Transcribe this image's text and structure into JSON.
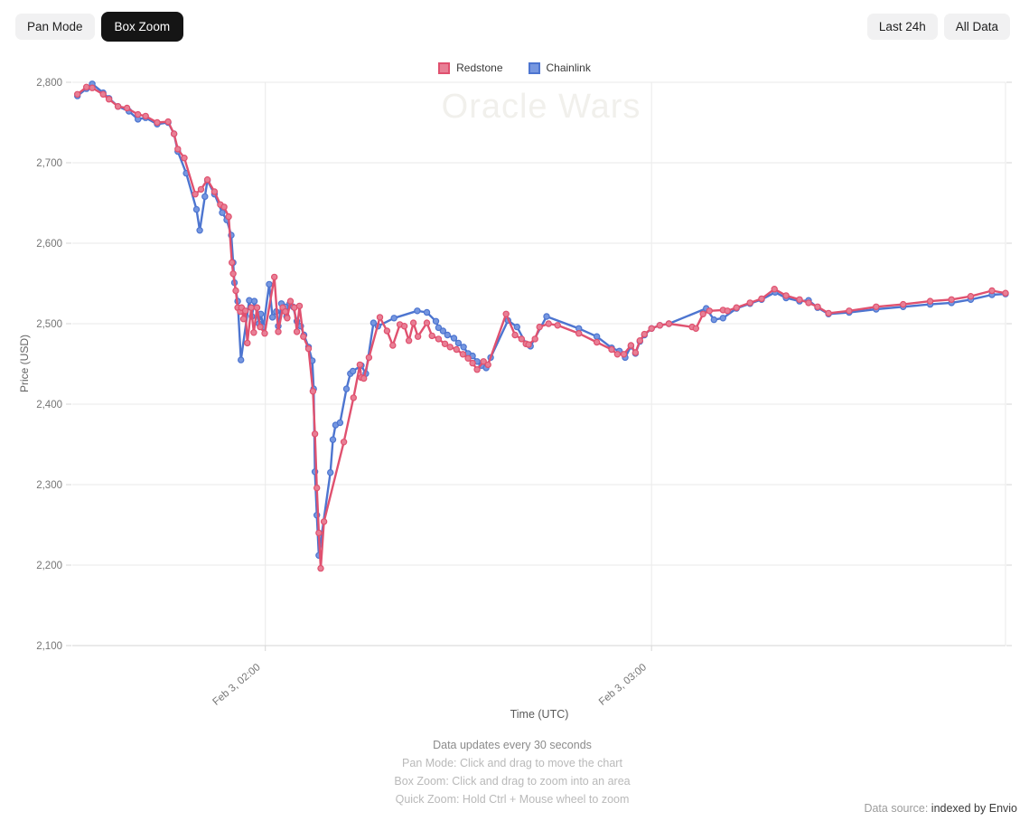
{
  "toolbar": {
    "pan_mode": "Pan Mode",
    "box_zoom": "Box Zoom",
    "last_24h": "Last 24h",
    "all_data": "All Data",
    "active_mode": "Box Zoom"
  },
  "watermark": "Oracle Wars",
  "footer": {
    "update_note": "Data updates every 30 seconds",
    "hints": [
      "Pan Mode: Click and drag to move the chart",
      "Box Zoom: Click and drag to zoom into an area",
      "Quick Zoom: Hold Ctrl + Mouse wheel to zoom"
    ],
    "datasource_label": "Data source:",
    "datasource_value": "indexed by Envio"
  },
  "chart_data": {
    "type": "line",
    "xlabel": "Time (UTC)",
    "ylabel": "Price (USD)",
    "x_unit": "minutes since Feb 3 00:00 UTC",
    "xlim": [
      90,
      235
    ],
    "ylim": [
      2100,
      2800
    ],
    "y_ticks": [
      2100,
      2200,
      2300,
      2400,
      2500,
      2600,
      2700,
      2800
    ],
    "x_ticks": [
      {
        "t": 120,
        "label": "Feb 3, 02:00"
      },
      {
        "t": 180,
        "label": "Feb 3, 03:00"
      }
    ],
    "grid": true,
    "legend_position": "top",
    "colors": {
      "grid": "#eaeaea",
      "axis": "#d6d6d6",
      "tick_text": "#757575"
    },
    "series": [
      {
        "name": "Redstone",
        "color": "#e0516f",
        "fill": "#e87f95",
        "points": [
          [
            90.8,
            2785
          ],
          [
            92.2,
            2794
          ],
          [
            93.1,
            2793
          ],
          [
            94.8,
            2785
          ],
          [
            95.7,
            2779
          ],
          [
            97.1,
            2770
          ],
          [
            98.5,
            2768
          ],
          [
            100.2,
            2760
          ],
          [
            101.4,
            2758
          ],
          [
            103.2,
            2750
          ],
          [
            104.9,
            2751
          ],
          [
            105.8,
            2736
          ],
          [
            106.4,
            2717
          ],
          [
            107.4,
            2706
          ],
          [
            109.1,
            2661
          ],
          [
            110,
            2667
          ],
          [
            111,
            2679
          ],
          [
            112.1,
            2664
          ],
          [
            113,
            2648
          ],
          [
            113.6,
            2645
          ],
          [
            114.3,
            2633
          ],
          [
            114.8,
            2576
          ],
          [
            115,
            2562
          ],
          [
            115.4,
            2541
          ],
          [
            115.7,
            2520
          ],
          [
            116.1,
            2515
          ],
          [
            116.3,
            2520
          ],
          [
            116.6,
            2506
          ],
          [
            116.9,
            2516
          ],
          [
            117.2,
            2476
          ],
          [
            117.8,
            2520
          ],
          [
            118.2,
            2489
          ],
          [
            118.7,
            2520
          ],
          [
            119.2,
            2496
          ],
          [
            119.9,
            2488
          ],
          [
            121.4,
            2558
          ],
          [
            122,
            2490
          ],
          [
            122.7,
            2520
          ],
          [
            123.1,
            2515
          ],
          [
            123.4,
            2507
          ],
          [
            123.9,
            2528
          ],
          [
            124.5,
            2520
          ],
          [
            124.9,
            2490
          ],
          [
            125.3,
            2522
          ],
          [
            125.9,
            2484
          ],
          [
            126.7,
            2469
          ],
          [
            127.4,
            2416
          ],
          [
            127.7,
            2363
          ],
          [
            128,
            2296
          ],
          [
            128.3,
            2240
          ],
          [
            128.6,
            2196
          ],
          [
            129.1,
            2254
          ],
          [
            132.2,
            2353
          ],
          [
            133.7,
            2408
          ],
          [
            134.7,
            2449
          ],
          [
            134.9,
            2433
          ],
          [
            135.3,
            2432
          ],
          [
            136.1,
            2458
          ],
          [
            137.8,
            2508
          ],
          [
            138.9,
            2491
          ],
          [
            139.8,
            2473
          ],
          [
            140.9,
            2499
          ],
          [
            141.6,
            2497
          ],
          [
            142.3,
            2479
          ],
          [
            143,
            2501
          ],
          [
            143.7,
            2484
          ],
          [
            145.1,
            2501
          ],
          [
            145.9,
            2485
          ],
          [
            146.9,
            2481
          ],
          [
            147.9,
            2475
          ],
          [
            148.7,
            2471
          ],
          [
            149.7,
            2468
          ],
          [
            150.7,
            2462
          ],
          [
            151.5,
            2457
          ],
          [
            152.2,
            2451
          ],
          [
            152.9,
            2443
          ],
          [
            153.9,
            2453
          ],
          [
            154.6,
            2449
          ],
          [
            157.4,
            2512
          ],
          [
            158.8,
            2486
          ],
          [
            159.8,
            2481
          ],
          [
            160.5,
            2475
          ],
          [
            160.9,
            2474
          ],
          [
            161.9,
            2481
          ],
          [
            162.6,
            2496
          ],
          [
            164,
            2500
          ],
          [
            165.4,
            2498
          ],
          [
            168.7,
            2488
          ],
          [
            171.5,
            2477
          ],
          [
            173.8,
            2468
          ],
          [
            174.7,
            2462
          ],
          [
            175.7,
            2462
          ],
          [
            176.8,
            2473
          ],
          [
            177.5,
            2464
          ],
          [
            178.2,
            2479
          ],
          [
            178.9,
            2487
          ],
          [
            180,
            2494
          ],
          [
            181.3,
            2498
          ],
          [
            182.7,
            2500
          ],
          [
            186.3,
            2496
          ],
          [
            186.9,
            2494
          ],
          [
            188,
            2512
          ],
          [
            189,
            2516
          ],
          [
            191.1,
            2517
          ],
          [
            191.8,
            2516
          ],
          [
            193.2,
            2520
          ],
          [
            195.3,
            2526
          ],
          [
            197.1,
            2531
          ],
          [
            199.1,
            2543
          ],
          [
            200.9,
            2535
          ],
          [
            203,
            2530
          ],
          [
            204.4,
            2526
          ],
          [
            205.8,
            2521
          ],
          [
            207.5,
            2513
          ],
          [
            210.7,
            2516
          ],
          [
            214.9,
            2521
          ],
          [
            219.1,
            2524
          ],
          [
            223.3,
            2528
          ],
          [
            226.6,
            2530
          ],
          [
            229.6,
            2534
          ],
          [
            232.9,
            2541
          ],
          [
            235,
            2538
          ]
        ]
      },
      {
        "name": "Chainlink",
        "color": "#4d75d0",
        "fill": "#7697e0",
        "points": [
          [
            90.8,
            2783
          ],
          [
            92.2,
            2792
          ],
          [
            93.1,
            2798
          ],
          [
            94.8,
            2787
          ],
          [
            95.7,
            2780
          ],
          [
            97.1,
            2770
          ],
          [
            98.8,
            2764
          ],
          [
            100.2,
            2754
          ],
          [
            101.4,
            2756
          ],
          [
            103.2,
            2748
          ],
          [
            104.9,
            2750
          ],
          [
            105.8,
            2736
          ],
          [
            106.4,
            2714
          ],
          [
            107.7,
            2687
          ],
          [
            109.3,
            2642
          ],
          [
            109.8,
            2616
          ],
          [
            110.6,
            2658
          ],
          [
            111,
            2678
          ],
          [
            112.1,
            2661
          ],
          [
            113.3,
            2638
          ],
          [
            114,
            2629
          ],
          [
            114.7,
            2610
          ],
          [
            115,
            2576
          ],
          [
            115.2,
            2551
          ],
          [
            115.7,
            2528
          ],
          [
            116.2,
            2455
          ],
          [
            117.5,
            2529
          ],
          [
            117.9,
            2509
          ],
          [
            118.3,
            2528
          ],
          [
            119,
            2500
          ],
          [
            119.3,
            2512
          ],
          [
            119.7,
            2496
          ],
          [
            120.6,
            2549
          ],
          [
            121.1,
            2508
          ],
          [
            121.7,
            2515
          ],
          [
            122,
            2497
          ],
          [
            122.5,
            2525
          ],
          [
            123.1,
            2521
          ],
          [
            123.3,
            2509
          ],
          [
            123.8,
            2525
          ],
          [
            124.3,
            2521
          ],
          [
            124.9,
            2503
          ],
          [
            125.5,
            2497
          ],
          [
            126,
            2486
          ],
          [
            126.7,
            2471
          ],
          [
            127.3,
            2454
          ],
          [
            127.5,
            2419
          ],
          [
            127.7,
            2316
          ],
          [
            128,
            2262
          ],
          [
            128.3,
            2212
          ],
          [
            130.1,
            2315
          ],
          [
            130.5,
            2356
          ],
          [
            130.9,
            2374
          ],
          [
            131.6,
            2377
          ],
          [
            132.6,
            2419
          ],
          [
            133.2,
            2438
          ],
          [
            133.6,
            2441
          ],
          [
            134.9,
            2448
          ],
          [
            135.6,
            2438
          ],
          [
            136.8,
            2501
          ],
          [
            137.5,
            2497
          ],
          [
            140,
            2507
          ],
          [
            143.6,
            2516
          ],
          [
            145.1,
            2514
          ],
          [
            146.5,
            2503
          ],
          [
            146.9,
            2495
          ],
          [
            147.6,
            2491
          ],
          [
            148.3,
            2486
          ],
          [
            149.3,
            2482
          ],
          [
            150,
            2476
          ],
          [
            150.8,
            2471
          ],
          [
            151.5,
            2463
          ],
          [
            152.2,
            2460
          ],
          [
            152.9,
            2453
          ],
          [
            153.6,
            2448
          ],
          [
            154.3,
            2445
          ],
          [
            155,
            2458
          ],
          [
            157.7,
            2504
          ],
          [
            159.1,
            2496
          ],
          [
            160.5,
            2475
          ],
          [
            161.2,
            2472
          ],
          [
            163.7,
            2509
          ],
          [
            168.7,
            2494
          ],
          [
            171.5,
            2484
          ],
          [
            173.8,
            2470
          ],
          [
            175,
            2466
          ],
          [
            175.9,
            2458
          ],
          [
            176.8,
            2472
          ],
          [
            177.5,
            2463
          ],
          [
            178.2,
            2478
          ],
          [
            178.9,
            2486
          ],
          [
            180,
            2494
          ],
          [
            181.3,
            2498
          ],
          [
            182.7,
            2500
          ],
          [
            188.5,
            2519
          ],
          [
            189.7,
            2505
          ],
          [
            191.1,
            2507
          ],
          [
            193.2,
            2519
          ],
          [
            195.3,
            2525
          ],
          [
            197.1,
            2530
          ],
          [
            199.2,
            2539
          ],
          [
            200.9,
            2532
          ],
          [
            203,
            2528
          ],
          [
            204.4,
            2529
          ],
          [
            205.8,
            2520
          ],
          [
            207.5,
            2512
          ],
          [
            210.7,
            2514
          ],
          [
            214.9,
            2518
          ],
          [
            219.1,
            2521
          ],
          [
            223.3,
            2524
          ],
          [
            226.6,
            2526
          ],
          [
            229.6,
            2530
          ],
          [
            232.9,
            2536
          ],
          [
            235,
            2537
          ]
        ]
      }
    ]
  }
}
